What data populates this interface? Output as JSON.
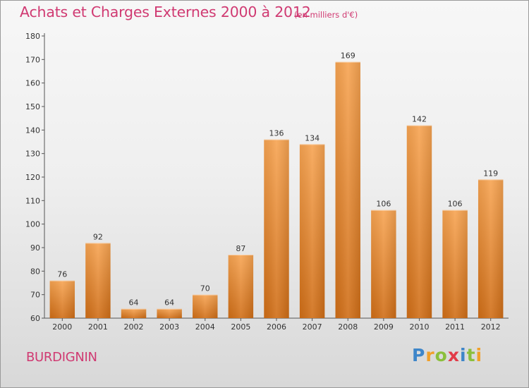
{
  "title": "Achats et Charges Externes 2000 à 2012",
  "subtitle": "(en milliers d'€)",
  "place": "BURDIGNIN",
  "logo": {
    "letters": [
      {
        "ch": "P",
        "color": "#3e86c9"
      },
      {
        "ch": "r",
        "color": "#f0a02a"
      },
      {
        "ch": "o",
        "color": "#8bbf3c"
      },
      {
        "ch": "x",
        "color": "#e23b48"
      },
      {
        "ch": "i",
        "color": "#3e86c9"
      },
      {
        "ch": "t",
        "color": "#8bbf3c"
      },
      {
        "ch": "i",
        "color": "#f0a02a"
      }
    ]
  },
  "chart_data": {
    "type": "bar",
    "categories": [
      "2000",
      "2001",
      "2002",
      "2003",
      "2004",
      "2005",
      "2006",
      "2007",
      "2008",
      "2009",
      "2010",
      "2011",
      "2012"
    ],
    "values": [
      76,
      92,
      64,
      64,
      70,
      87,
      136,
      134,
      169,
      106,
      142,
      106,
      119
    ],
    "data_labels": [
      "76",
      "92",
      "64",
      "64",
      "70",
      "87",
      "136",
      "134",
      "169",
      "106",
      "142",
      "106",
      "119"
    ],
    "yticks": [
      "60",
      "70",
      "80",
      "90",
      "100",
      "110",
      "120",
      "130",
      "140",
      "150",
      "160",
      "170",
      "180"
    ],
    "ylim": [
      60,
      180
    ],
    "grid": false,
    "bar_color": "#f08a2c"
  }
}
